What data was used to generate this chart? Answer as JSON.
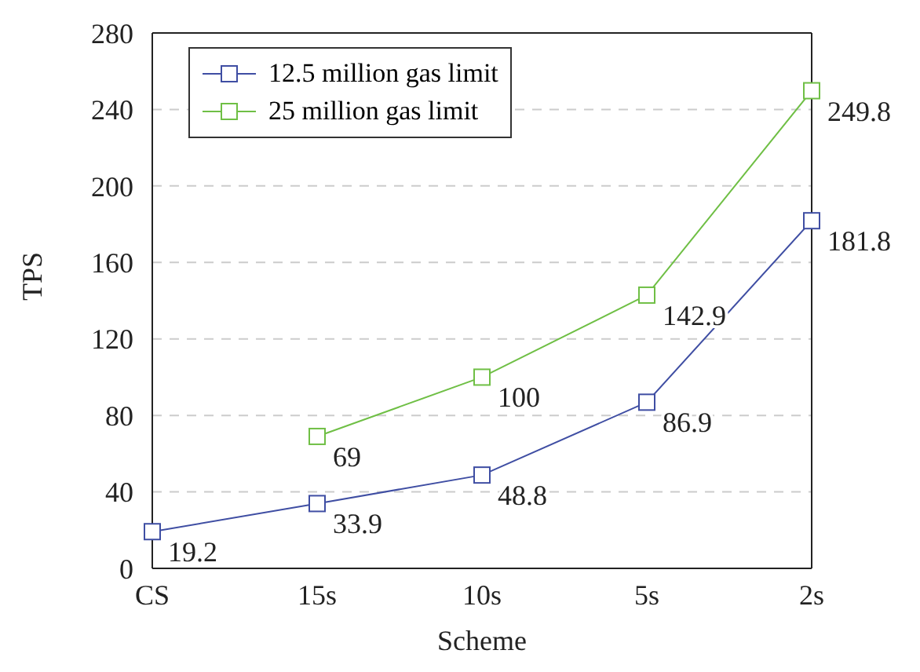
{
  "chart_data": {
    "type": "line",
    "xlabel": "Scheme",
    "ylabel": "TPS",
    "categories": [
      "CS",
      "15s",
      "10s",
      "5s",
      "2s"
    ],
    "series": [
      {
        "name": "12.5 million gas limit",
        "color": "#3f4ea3",
        "values": [
          19.2,
          33.9,
          48.8,
          86.9,
          181.8
        ]
      },
      {
        "name": "25 million gas limit",
        "color": "#6fbf45",
        "values": [
          null,
          69,
          100,
          142.9,
          249.8
        ]
      }
    ],
    "ylim": [
      0,
      280
    ],
    "yticks": [
      0,
      40,
      80,
      120,
      160,
      200,
      240,
      280
    ],
    "grid": "y",
    "legend": "top left",
    "marker": "square",
    "line_style": "solid",
    "data_labels": true
  }
}
